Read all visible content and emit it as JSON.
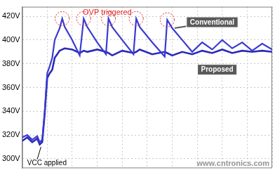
{
  "chart_data": {
    "type": "line",
    "annotations": [
      "OVP triggered",
      "VCC applied",
      "www.cntronics.com"
    ],
    "x": [
      0,
      2,
      4,
      6,
      7,
      8,
      9,
      10,
      11,
      12,
      13,
      15,
      16,
      17,
      20,
      23,
      24.6,
      26,
      30,
      33.5,
      34.5,
      36,
      40,
      44.5,
      45.6,
      47,
      52,
      57,
      58,
      60,
      64,
      68,
      72,
      76,
      80,
      84,
      88,
      92,
      96,
      100
    ],
    "series": [
      {
        "name": "Conventional",
        "color": "#3a3ad2",
        "values": [
          318,
          320,
          316,
          319,
          314,
          316,
          340,
          372,
          378,
          385,
          400,
          410,
          418,
          411,
          400,
          387,
          418,
          411,
          398,
          388,
          418,
          411,
          400,
          388,
          418,
          411,
          398,
          386,
          417,
          410,
          400,
          390,
          398,
          392,
          400,
          393,
          398,
          391,
          397,
          392
        ]
      },
      {
        "name": "Proposed",
        "color": "#2a2ab8",
        "values": [
          315,
          318,
          314,
          317,
          312,
          314,
          338,
          368,
          372,
          375,
          385,
          391,
          392,
          393,
          392,
          389,
          391,
          390,
          392,
          390,
          389,
          387,
          391,
          389,
          390,
          392,
          388,
          390,
          389,
          387,
          390,
          388,
          391,
          389,
          392,
          389,
          391,
          390,
          391,
          390
        ]
      }
    ],
    "xlim": [
      0,
      100
    ],
    "xticks": [
      0,
      10,
      20,
      30,
      40,
      50,
      60,
      70,
      80,
      90,
      100
    ],
    "ylim": [
      292,
      428
    ],
    "yticks": [
      {
        "value": 300,
        "label": "300V"
      },
      {
        "value": 320,
        "label": "320V"
      },
      {
        "value": 340,
        "label": "340V"
      },
      {
        "value": 360,
        "label": "360V"
      },
      {
        "value": 380,
        "label": "380V"
      },
      {
        "value": 400,
        "label": "400V"
      },
      {
        "value": 420,
        "label": "420V"
      }
    ],
    "grid": true,
    "tick_labels": "y",
    "line_style": "solid",
    "marker": "none"
  }
}
